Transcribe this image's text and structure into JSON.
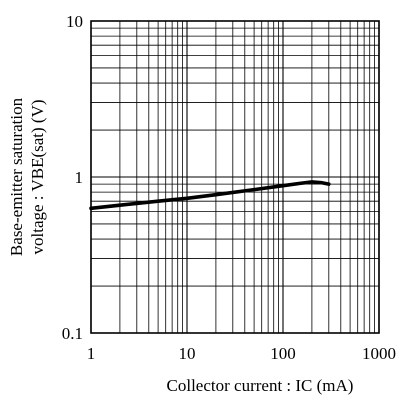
{
  "chart_data": {
    "type": "line",
    "title": "",
    "xlabel": "Collector current : IC (mA)",
    "ylabel_line1": "Base-emitter saturation",
    "ylabel_line2": "voltage : VBE(sat) (V)",
    "xscale": "log",
    "yscale": "log",
    "xlim": [
      1,
      1000
    ],
    "ylim": [
      0.1,
      10
    ],
    "x_ticks": [
      1,
      10,
      100,
      1000
    ],
    "x_tick_labels": [
      "1",
      "10",
      "100",
      "1000"
    ],
    "y_ticks": [
      0.1,
      1,
      10
    ],
    "y_tick_labels": [
      "0.1",
      "1",
      "10"
    ],
    "grid": true,
    "legend": "none",
    "series": [
      {
        "x": [
          1,
          2,
          5,
          10,
          20,
          50,
          100,
          150,
          200,
          250,
          300
        ],
        "y": [
          0.63,
          0.66,
          0.7,
          0.73,
          0.77,
          0.83,
          0.88,
          0.91,
          0.93,
          0.92,
          0.9
        ]
      }
    ]
  },
  "colors": {
    "curve": "#000000",
    "grid": "#000000",
    "frame": "#000000",
    "background": "#ffffff"
  }
}
